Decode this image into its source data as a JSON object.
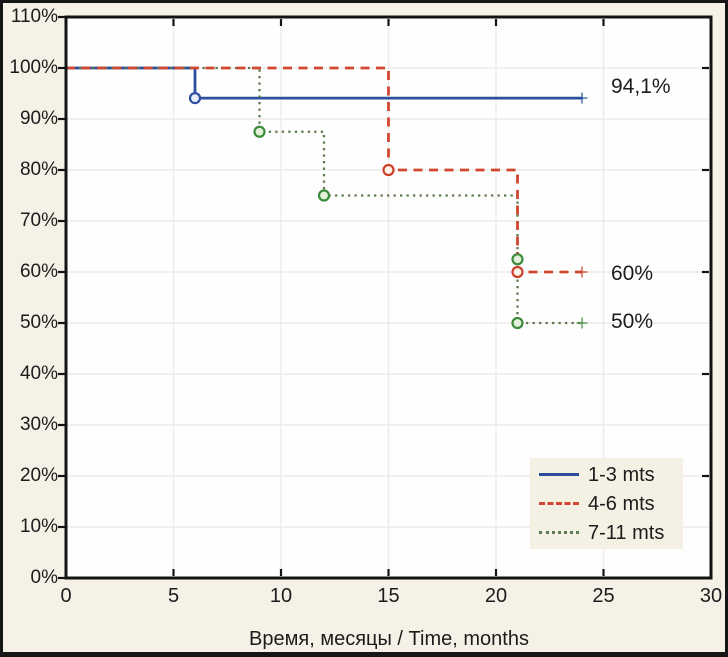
{
  "chart_data": {
    "type": "line",
    "subtype": "kaplan-meier-step",
    "title": "",
    "xlabel": "Время, месяцы / Time, months",
    "ylabel": "",
    "xlim": [
      0,
      30
    ],
    "ylim": [
      0,
      110
    ],
    "x_ticks": [
      0,
      5,
      10,
      15,
      20,
      25,
      30
    ],
    "x_tick_labels": [
      "0",
      "5",
      "10",
      "15",
      "20",
      "25",
      "30"
    ],
    "y_ticks": [
      0,
      10,
      20,
      30,
      40,
      50,
      60,
      70,
      80,
      90,
      100,
      110
    ],
    "y_tick_labels": [
      "0%",
      "10%",
      "20%",
      "30%",
      "40%",
      "50%",
      "60%",
      "70%",
      "80%",
      "90%",
      "100%",
      "110%"
    ],
    "y_ticks_right": [
      20,
      40,
      60,
      80,
      100
    ],
    "grid": true,
    "legend_position": "bottom-right",
    "series": [
      {
        "name": "1-3 mts",
        "color": "#2b4f9c",
        "marker_color": "#2b4f9c",
        "marker_fill": "#eaf0fb",
        "line_style": "solid",
        "points": [
          [
            0,
            100
          ],
          [
            6,
            100
          ],
          [
            6,
            94.1
          ],
          [
            24,
            94.1
          ]
        ],
        "event_markers": [
          [
            6,
            94.1
          ]
        ],
        "censor_marker": [
          24,
          94.1
        ],
        "final_label": "94,1%"
      },
      {
        "name": "4-6 mts",
        "color": "#d2472f",
        "marker_color": "#cb4029",
        "marker_fill": "#fdf4ea",
        "line_style": "dashed",
        "points": [
          [
            0,
            100
          ],
          [
            15,
            100
          ],
          [
            15,
            80
          ],
          [
            21,
            80
          ],
          [
            21,
            60
          ],
          [
            24,
            60
          ]
        ],
        "event_markers": [
          [
            15,
            80
          ],
          [
            21,
            60
          ]
        ],
        "censor_marker": [
          24,
          60
        ],
        "final_label": "60%"
      },
      {
        "name": "7-11 mts",
        "color": "#5d7a50",
        "marker_color": "#3c8a3c",
        "marker_fill": "#e3f1da",
        "line_style": "dotted",
        "points": [
          [
            0,
            100
          ],
          [
            9,
            100
          ],
          [
            9,
            87.5
          ],
          [
            12,
            87.5
          ],
          [
            12,
            75
          ],
          [
            21,
            75
          ],
          [
            21,
            50
          ],
          [
            24,
            50
          ]
        ],
        "event_markers": [
          [
            9,
            87.5
          ],
          [
            12,
            75
          ],
          [
            21,
            62.5
          ],
          [
            21,
            50
          ]
        ],
        "censor_marker": [
          24,
          50
        ],
        "final_label": "50%"
      }
    ],
    "colors": {
      "background": "#f5f1e6",
      "plot_background": "#fefefe",
      "grid": "#f0eaea",
      "axis": "#141414",
      "frame": "#161616",
      "text": "#1c1c1c",
      "legend_background": "#f4f0e4"
    }
  }
}
